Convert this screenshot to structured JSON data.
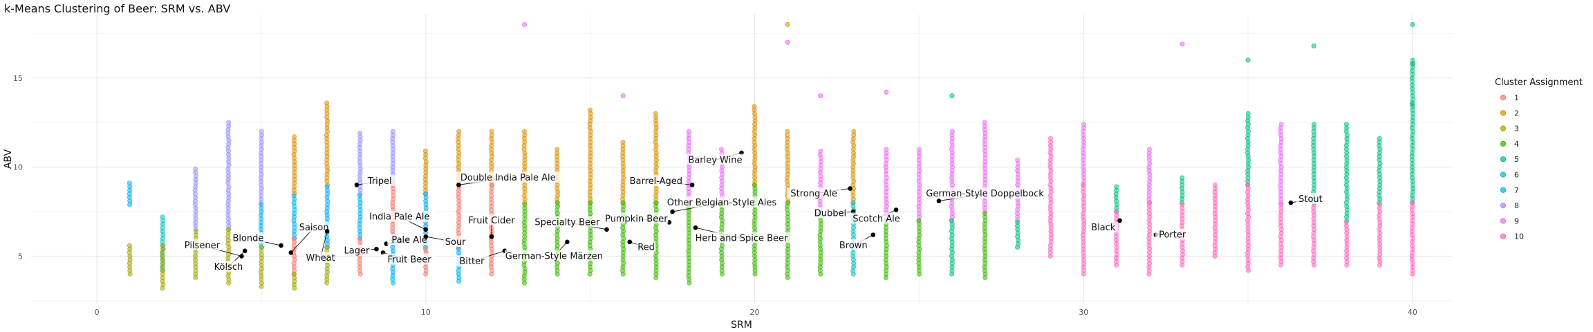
{
  "title": "k-Means Clustering of Beer: SRM vs. ABV",
  "chart_data": {
    "type": "scatter",
    "title": "k-Means Clustering of Beer: SRM vs. ABV",
    "xlabel": "SRM",
    "ylabel": "ABV",
    "xlim": [
      -2,
      41.2
    ],
    "ylim": [
      2.3,
      18.6
    ],
    "xticks": [
      0,
      10,
      20,
      30,
      40
    ],
    "yticks": [
      5,
      10,
      15
    ],
    "grid": true,
    "legend": {
      "title": "Cluster Assignment",
      "position": "right",
      "entries": [
        {
          "label": "1",
          "color": "#F8766D"
        },
        {
          "label": "2",
          "color": "#D89000"
        },
        {
          "label": "3",
          "color": "#A3A500"
        },
        {
          "label": "4",
          "color": "#39B600"
        },
        {
          "label": "5",
          "color": "#00BF7D"
        },
        {
          "label": "6",
          "color": "#00BFC4"
        },
        {
          "label": "7",
          "color": "#00B0F6"
        },
        {
          "label": "8",
          "color": "#9590FF"
        },
        {
          "label": "9",
          "color": "#E76BF3"
        },
        {
          "label": "10",
          "color": "#FF62BC"
        }
      ]
    },
    "columns": [
      {
        "x": 1,
        "cluster": "7",
        "ymin": 7.9,
        "ymax": 9.2
      },
      {
        "x": 1,
        "cluster": "3",
        "ymin": 4.0,
        "ymax": 5.6
      },
      {
        "x": 2,
        "cluster": "6",
        "ymin": 4.2,
        "ymax": 7.3
      },
      {
        "x": 2,
        "cluster": "3",
        "ymin": 3.2,
        "ymax": 5.6
      },
      {
        "x": 3,
        "cluster": "8",
        "ymin": 6.5,
        "ymax": 10.0
      },
      {
        "x": 3,
        "cluster": "3",
        "ymin": 3.8,
        "ymax": 6.5
      },
      {
        "x": 4,
        "cluster": "8",
        "ymin": 6.5,
        "ymax": 12.5
      },
      {
        "x": 4,
        "cluster": "3",
        "ymin": 3.5,
        "ymax": 6.5
      },
      {
        "x": 5,
        "cluster": "8",
        "ymin": 8.0,
        "ymax": 12.0
      },
      {
        "x": 5,
        "cluster": "7",
        "ymin": 5.5,
        "ymax": 8.0
      },
      {
        "x": 5,
        "cluster": "3",
        "ymin": 3.3,
        "ymax": 5.5
      },
      {
        "x": 6,
        "cluster": "2",
        "ymin": 8.5,
        "ymax": 11.7
      },
      {
        "x": 6,
        "cluster": "7",
        "ymin": 6.0,
        "ymax": 8.5
      },
      {
        "x": 6,
        "cluster": "1",
        "ymin": 4.0,
        "ymax": 6.0
      },
      {
        "x": 6,
        "cluster": "3",
        "ymin": 3.2,
        "ymax": 4.0
      },
      {
        "x": 7,
        "cluster": "2",
        "ymin": 9.0,
        "ymax": 13.7
      },
      {
        "x": 7,
        "cluster": "7",
        "ymin": 5.5,
        "ymax": 9.0
      },
      {
        "x": 7,
        "cluster": "3",
        "ymin": 3.5,
        "ymax": 5.5
      },
      {
        "x": 8,
        "cluster": "8",
        "ymin": 8.5,
        "ymax": 12.0
      },
      {
        "x": 8,
        "cluster": "7",
        "ymin": 6.0,
        "ymax": 8.5
      },
      {
        "x": 8,
        "cluster": "1",
        "ymin": 4.0,
        "ymax": 6.0
      },
      {
        "x": 9,
        "cluster": "8",
        "ymin": 9.0,
        "ymax": 12.0
      },
      {
        "x": 9,
        "cluster": "1",
        "ymin": 6.0,
        "ymax": 9.0
      },
      {
        "x": 9,
        "cluster": "7",
        "ymin": 3.5,
        "ymax": 6.0
      },
      {
        "x": 10,
        "cluster": "2",
        "ymin": 8.5,
        "ymax": 11.0
      },
      {
        "x": 10,
        "cluster": "7",
        "ymin": 5.5,
        "ymax": 8.5
      },
      {
        "x": 10,
        "cluster": "1",
        "ymin": 4.0,
        "ymax": 5.5
      },
      {
        "x": 11,
        "cluster": "2",
        "ymin": 9.0,
        "ymax": 12.0
      },
      {
        "x": 11,
        "cluster": "1",
        "ymin": 5.5,
        "ymax": 9.0
      },
      {
        "x": 11,
        "cluster": "7",
        "ymin": 3.6,
        "ymax": 5.5
      },
      {
        "x": 12,
        "cluster": "2",
        "ymin": 9.0,
        "ymax": 12.0
      },
      {
        "x": 12,
        "cluster": "1",
        "ymin": 4.0,
        "ymax": 9.0
      },
      {
        "x": 13,
        "cluster": "2",
        "ymin": 8.0,
        "ymax": 12.0
      },
      {
        "x": 13,
        "cluster": "4",
        "ymin": 3.5,
        "ymax": 8.0
      },
      {
        "x": 14,
        "cluster": "2",
        "ymin": 8.0,
        "ymax": 11.0
      },
      {
        "x": 14,
        "cluster": "4",
        "ymin": 4.0,
        "ymax": 8.0
      },
      {
        "x": 15,
        "cluster": "2",
        "ymin": 8.0,
        "ymax": 13.2
      },
      {
        "x": 15,
        "cluster": "4",
        "ymin": 4.0,
        "ymax": 8.0
      },
      {
        "x": 16,
        "cluster": "2",
        "ymin": 8.0,
        "ymax": 11.5
      },
      {
        "x": 16,
        "cluster": "4",
        "ymin": 4.0,
        "ymax": 8.0
      },
      {
        "x": 17,
        "cluster": "2",
        "ymin": 8.0,
        "ymax": 13.0
      },
      {
        "x": 17,
        "cluster": "4",
        "ymin": 3.8,
        "ymax": 8.0
      },
      {
        "x": 18,
        "cluster": "9",
        "ymin": 8.0,
        "ymax": 12.0
      },
      {
        "x": 18,
        "cluster": "4",
        "ymin": 3.5,
        "ymax": 8.0
      },
      {
        "x": 19,
        "cluster": "9",
        "ymin": 8.0,
        "ymax": 11.0
      },
      {
        "x": 19,
        "cluster": "4",
        "ymin": 4.0,
        "ymax": 8.0
      },
      {
        "x": 20,
        "cluster": "2",
        "ymin": 9.0,
        "ymax": 13.5
      },
      {
        "x": 20,
        "cluster": "4",
        "ymin": 4.0,
        "ymax": 9.0
      },
      {
        "x": 21,
        "cluster": "2",
        "ymin": 8.0,
        "ymax": 12.0
      },
      {
        "x": 21,
        "cluster": "4",
        "ymin": 3.8,
        "ymax": 8.0
      },
      {
        "x": 22,
        "cluster": "9",
        "ymin": 7.5,
        "ymax": 11.0
      },
      {
        "x": 22,
        "cluster": "4",
        "ymin": 4.0,
        "ymax": 7.5
      },
      {
        "x": 23,
        "cluster": "2",
        "ymin": 8.0,
        "ymax": 12.0
      },
      {
        "x": 23,
        "cluster": "6",
        "ymin": 4.0,
        "ymax": 8.0
      },
      {
        "x": 24,
        "cluster": "9",
        "ymin": 7.0,
        "ymax": 11.0
      },
      {
        "x": 24,
        "cluster": "4",
        "ymin": 3.8,
        "ymax": 7.0
      },
      {
        "x": 25,
        "cluster": "9",
        "ymin": 7.0,
        "ymax": 11.0
      },
      {
        "x": 25,
        "cluster": "4",
        "ymin": 4.0,
        "ymax": 7.0
      },
      {
        "x": 26,
        "cluster": "9",
        "ymin": 7.0,
        "ymax": 12.0
      },
      {
        "x": 26,
        "cluster": "5",
        "ymin": 4.0,
        "ymax": 7.0
      },
      {
        "x": 27,
        "cluster": "9",
        "ymin": 7.5,
        "ymax": 12.5
      },
      {
        "x": 27,
        "cluster": "4",
        "ymin": 3.8,
        "ymax": 7.5
      },
      {
        "x": 28,
        "cluster": "9",
        "ymin": 7.0,
        "ymax": 10.5
      },
      {
        "x": 28,
        "cluster": "5",
        "ymin": 5.5,
        "ymax": 7.0
      },
      {
        "x": 29,
        "cluster": "10",
        "ymin": 5.0,
        "ymax": 11.6
      },
      {
        "x": 30,
        "cluster": "9",
        "ymin": 9.0,
        "ymax": 12.5
      },
      {
        "x": 30,
        "cluster": "10",
        "ymin": 4.0,
        "ymax": 9.0
      },
      {
        "x": 31,
        "cluster": "5",
        "ymin": 7.5,
        "ymax": 9.0
      },
      {
        "x": 31,
        "cluster": "10",
        "ymin": 4.5,
        "ymax": 7.5
      },
      {
        "x": 32,
        "cluster": "9",
        "ymin": 8.0,
        "ymax": 11.0
      },
      {
        "x": 32,
        "cluster": "10",
        "ymin": 4.0,
        "ymax": 8.0
      },
      {
        "x": 33,
        "cluster": "5",
        "ymin": 8.0,
        "ymax": 9.5
      },
      {
        "x": 33,
        "cluster": "10",
        "ymin": 4.5,
        "ymax": 8.0
      },
      {
        "x": 34,
        "cluster": "10",
        "ymin": 5.0,
        "ymax": 9.0
      },
      {
        "x": 35,
        "cluster": "5",
        "ymin": 9.0,
        "ymax": 13.0
      },
      {
        "x": 35,
        "cluster": "10",
        "ymin": 4.2,
        "ymax": 9.0
      },
      {
        "x": 36,
        "cluster": "9",
        "ymin": 8.0,
        "ymax": 12.5
      },
      {
        "x": 36,
        "cluster": "10",
        "ymin": 4.5,
        "ymax": 8.0
      },
      {
        "x": 37,
        "cluster": "5",
        "ymin": 8.0,
        "ymax": 12.5
      },
      {
        "x": 37,
        "cluster": "10",
        "ymin": 4.5,
        "ymax": 8.0
      },
      {
        "x": 38,
        "cluster": "5",
        "ymin": 7.0,
        "ymax": 12.5
      },
      {
        "x": 38,
        "cluster": "10",
        "ymin": 4.5,
        "ymax": 7.0
      },
      {
        "x": 39,
        "cluster": "5",
        "ymin": 8.0,
        "ymax": 11.6
      },
      {
        "x": 39,
        "cluster": "10",
        "ymin": 4.5,
        "ymax": 8.0
      },
      {
        "x": 40,
        "cluster": "5",
        "ymin": 8.0,
        "ymax": 16.0
      },
      {
        "x": 40,
        "cluster": "10",
        "ymin": 4.0,
        "ymax": 8.0
      }
    ],
    "extra_points": [
      {
        "x": 13,
        "y": 18.0,
        "cluster": "9"
      },
      {
        "x": 21,
        "y": 18.0,
        "cluster": "2"
      },
      {
        "x": 21,
        "y": 17.0,
        "cluster": "9"
      },
      {
        "x": 16,
        "y": 14.0,
        "cluster": "9"
      },
      {
        "x": 22,
        "y": 14.0,
        "cluster": "9"
      },
      {
        "x": 24,
        "y": 14.2,
        "cluster": "9"
      },
      {
        "x": 26,
        "y": 14.0,
        "cluster": "5"
      },
      {
        "x": 33,
        "y": 16.9,
        "cluster": "9"
      },
      {
        "x": 35,
        "y": 16.0,
        "cluster": "5"
      },
      {
        "x": 37,
        "y": 16.8,
        "cluster": "5"
      },
      {
        "x": 40,
        "y": 18.0,
        "cluster": "5"
      },
      {
        "x": 40,
        "y": 15.8,
        "cluster": "5"
      },
      {
        "x": 40,
        "y": 13.5,
        "cluster": "5"
      }
    ],
    "styles": [
      {
        "label": "Pilsener",
        "x": 4.4,
        "y": 5.0,
        "label_x": 3.2,
        "label_y": 5.6
      },
      {
        "label": "Blonde",
        "x": 5.6,
        "y": 5.6,
        "label_x": 4.6,
        "label_y": 6.0
      },
      {
        "label": "Kölsch",
        "x": 4.5,
        "y": 5.3,
        "label_x": 4.0,
        "label_y": 4.4
      },
      {
        "label": "Saison",
        "x": 5.9,
        "y": 5.2,
        "label_x": 6.6,
        "label_y": 6.6
      },
      {
        "label": "Wheat",
        "x": 7.0,
        "y": 6.4,
        "label_x": 6.8,
        "label_y": 4.9
      },
      {
        "label": "Tripel",
        "x": 7.9,
        "y": 9.0,
        "label_x": 8.6,
        "label_y": 9.2
      },
      {
        "label": "Lager",
        "x": 8.5,
        "y": 5.4,
        "label_x": 7.9,
        "label_y": 5.3
      },
      {
        "label": "Pale Ale",
        "x": 8.8,
        "y": 5.7,
        "label_x": 9.5,
        "label_y": 5.9
      },
      {
        "label": "Fruit Beer",
        "x": 8.7,
        "y": 5.2,
        "label_x": 9.5,
        "label_y": 4.8
      },
      {
        "label": "India Pale Ale",
        "x": 10.0,
        "y": 6.5,
        "label_x": 9.2,
        "label_y": 7.2
      },
      {
        "label": "Sour",
        "x": 10.0,
        "y": 6.1,
        "label_x": 10.9,
        "label_y": 5.8
      },
      {
        "label": "Double India Pale Ale",
        "x": 11.0,
        "y": 9.0,
        "label_x": 12.5,
        "label_y": 9.4
      },
      {
        "label": "Fruit Cider",
        "x": 12.0,
        "y": 6.1,
        "label_x": 12.0,
        "label_y": 7.0
      },
      {
        "label": "Bitter",
        "x": 12.4,
        "y": 5.3,
        "label_x": 11.4,
        "label_y": 4.7
      },
      {
        "label": "German-Style Märzen",
        "x": 14.3,
        "y": 5.8,
        "label_x": 13.9,
        "label_y": 5.0
      },
      {
        "label": "Specialty Beer",
        "x": 15.5,
        "y": 6.5,
        "label_x": 14.3,
        "label_y": 6.9
      },
      {
        "label": "Pumpkin Beer",
        "x": 17.4,
        "y": 6.9,
        "label_x": 16.4,
        "label_y": 7.1
      },
      {
        "label": "Red",
        "x": 16.2,
        "y": 5.8,
        "label_x": 16.7,
        "label_y": 5.5
      },
      {
        "label": "Barrel-Aged",
        "x": 18.1,
        "y": 9.0,
        "label_x": 17.0,
        "label_y": 9.2
      },
      {
        "label": "Barley Wine",
        "x": 19.6,
        "y": 10.8,
        "label_x": 18.8,
        "label_y": 10.4
      },
      {
        "label": "Other Belgian-Style Ales",
        "x": 17.5,
        "y": 7.5,
        "label_x": 19.0,
        "label_y": 8.0
      },
      {
        "label": "Herb and Spice Beer",
        "x": 18.2,
        "y": 6.6,
        "label_x": 19.6,
        "label_y": 6.0
      },
      {
        "label": "Strong Ale",
        "x": 22.9,
        "y": 8.8,
        "label_x": 21.8,
        "label_y": 8.5
      },
      {
        "label": "Dubbel",
        "x": 23.0,
        "y": 7.5,
        "label_x": 22.3,
        "label_y": 7.4
      },
      {
        "label": "Scotch Ale",
        "x": 24.3,
        "y": 7.6,
        "label_x": 23.7,
        "label_y": 7.1
      },
      {
        "label": "Brown",
        "x": 23.6,
        "y": 6.2,
        "label_x": 23.0,
        "label_y": 5.6
      },
      {
        "label": "German-Style Doppelbock",
        "x": 25.6,
        "y": 8.1,
        "label_x": 27.0,
        "label_y": 8.5
      },
      {
        "label": "Black",
        "x": 31.1,
        "y": 7.0,
        "label_x": 30.6,
        "label_y": 6.6
      },
      {
        "label": "Porter",
        "x": 32.2,
        "y": 6.2,
        "label_x": 32.7,
        "label_y": 6.2
      },
      {
        "label": "Stout",
        "x": 36.3,
        "y": 8.0,
        "label_x": 36.9,
        "label_y": 8.2
      }
    ]
  }
}
